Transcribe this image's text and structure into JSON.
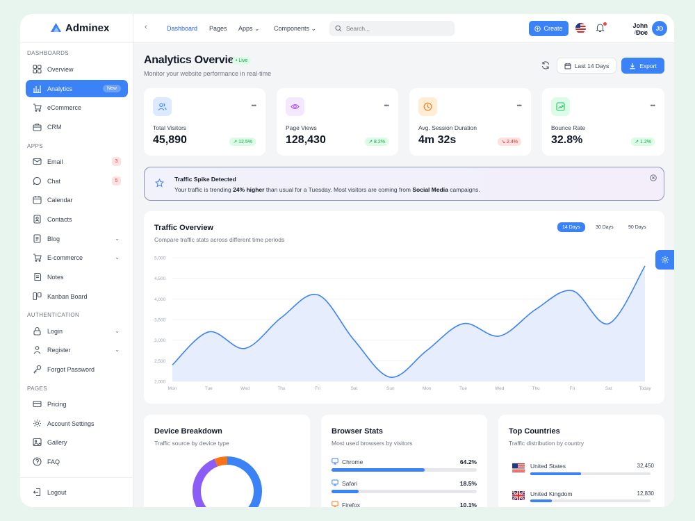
{
  "app": {
    "name": "Adminex"
  },
  "sidebar": {
    "sections": [
      "Dashboards",
      "Apps",
      "Authentication",
      "Pages"
    ],
    "items": [
      {
        "label": "Overview"
      },
      {
        "label": "Analytics",
        "badge": "New"
      },
      {
        "label": "eCommerce"
      },
      {
        "label": "CRM"
      },
      {
        "label": "Email",
        "count": "3"
      },
      {
        "label": "Chat",
        "count": "5"
      },
      {
        "label": "Calendar"
      },
      {
        "label": "Contacts"
      },
      {
        "label": "Blog"
      },
      {
        "label": "E-commerce"
      },
      {
        "label": "Notes"
      },
      {
        "label": "Kanban Board"
      },
      {
        "label": "Login"
      },
      {
        "label": "Register"
      },
      {
        "label": "Forgot Password"
      },
      {
        "label": "Pricing"
      },
      {
        "label": "Account Settings"
      },
      {
        "label": "Gallery"
      },
      {
        "label": "FAQ"
      }
    ],
    "logout": "Logout"
  },
  "topbar": {
    "nav": [
      "Dashboard",
      "Pages",
      "Apps",
      "Components"
    ],
    "search_placeholder": "Search...",
    "create_label": "Create",
    "user": {
      "name": "John Doe",
      "role": "Admin",
      "initials": "JD"
    }
  },
  "header": {
    "title": "Analytics Overview",
    "live": "Live",
    "subtitle": "Monitor your website performance in real-time",
    "range_label": "Last 14 Days",
    "export_label": "Export"
  },
  "stats": [
    {
      "label": "Total Visitors",
      "value": "45,890",
      "change": "↗ 12.5%",
      "trend": "up",
      "icon": "users-icon",
      "tint": "#dbeafe",
      "color": "#3b82f6"
    },
    {
      "label": "Page Views",
      "value": "128,430",
      "change": "↗ 8.2%",
      "trend": "up",
      "icon": "eye-icon",
      "tint": "#f3e8ff",
      "color": "#a855f7"
    },
    {
      "label": "Avg. Session Duration",
      "value": "4m 32s",
      "change": "↘ 2.4%",
      "trend": "down",
      "icon": "clock-icon",
      "tint": "#ffedd5",
      "color": "#f97316"
    },
    {
      "label": "Bounce Rate",
      "value": "32.8%",
      "change": "↗ 1.2%",
      "trend": "up",
      "icon": "trend-icon",
      "tint": "#dcfce7",
      "color": "#22c55e"
    }
  ],
  "alert": {
    "title": "Traffic Spike Detected",
    "msg_1": "Your traffic is trending ",
    "msg_bold_1": "24% higher",
    "msg_2": " than usual for a Tuesday. Most visitors are coming from ",
    "msg_bold_2": "Social Media",
    "msg_3": " campaigns."
  },
  "traffic": {
    "title": "Traffic Overview",
    "subtitle": "Compare traffic stats across different time periods",
    "tabs": [
      "14 Days",
      "30 Days",
      "90 Days"
    ]
  },
  "chart_data": {
    "type": "area",
    "categories": [
      "Mon",
      "Tue",
      "Wed",
      "Thu",
      "Fri",
      "Sat",
      "Sun",
      "Mon",
      "Tue",
      "Wed",
      "Thu",
      "Fri",
      "Sat",
      "Today"
    ],
    "values": [
      2400,
      3200,
      2800,
      3550,
      4100,
      3000,
      2100,
      2750,
      3400,
      3100,
      3750,
      4200,
      3400,
      4800
    ],
    "ylim": [
      2000,
      5000
    ],
    "yticks": [
      2000,
      2500,
      3000,
      3500,
      4000,
      4500,
      5000
    ],
    "ytick_labels": [
      "2,000",
      "2,500",
      "3,000",
      "3,500",
      "4,000",
      "4,500",
      "5,000"
    ],
    "color": "#3b82f6",
    "fill": "#e6edfc"
  },
  "device": {
    "title": "Device Breakdown",
    "subtitle": "Traffic source by device type",
    "segments": [
      {
        "value": 0.52,
        "color": "#3b82f6"
      },
      {
        "value": 0.42,
        "color": "#8b5cf6"
      },
      {
        "value": 0.06,
        "color": "#f97316"
      }
    ]
  },
  "browsers": {
    "title": "Browser Stats",
    "subtitle": "Most used browsers by visitors",
    "rows": [
      {
        "name": "Chrome",
        "value": "64.2%",
        "share": 0.642,
        "color": "#3b82f6"
      },
      {
        "name": "Safari",
        "value": "18.5%",
        "share": 0.185,
        "color": "#3b82f6"
      },
      {
        "name": "Firefox",
        "value": "10.1%",
        "share": 0.101,
        "color": "#f97316"
      }
    ]
  },
  "countries": {
    "title": "Top Countries",
    "subtitle": "Traffic distribution by country",
    "rows": [
      {
        "name": "United States",
        "value": "32,450",
        "share": 0.42
      },
      {
        "name": "United Kingdom",
        "value": "12,830",
        "share": 0.18
      }
    ]
  }
}
